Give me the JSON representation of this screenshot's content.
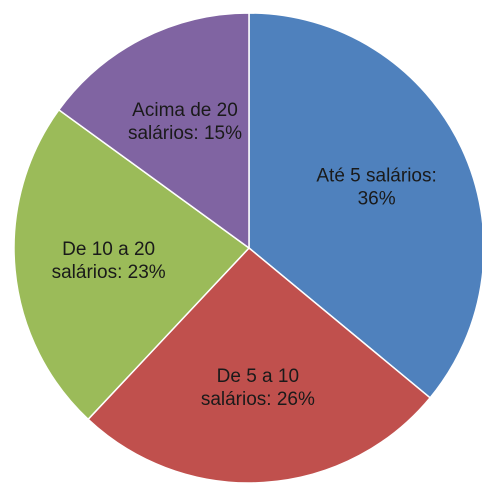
{
  "chart_data": {
    "type": "pie",
    "values": [
      36,
      26,
      23,
      15
    ],
    "value_labels": [
      "Até 5 salários: 36%",
      "De 5 a 10 salários: 26%",
      "De 10 a 20 salários: 23%",
      "Acima de 20 salários: 15%"
    ],
    "colors": [
      "#4f81bd",
      "#c0504d",
      "#9bbb59",
      "#8064a2"
    ]
  }
}
